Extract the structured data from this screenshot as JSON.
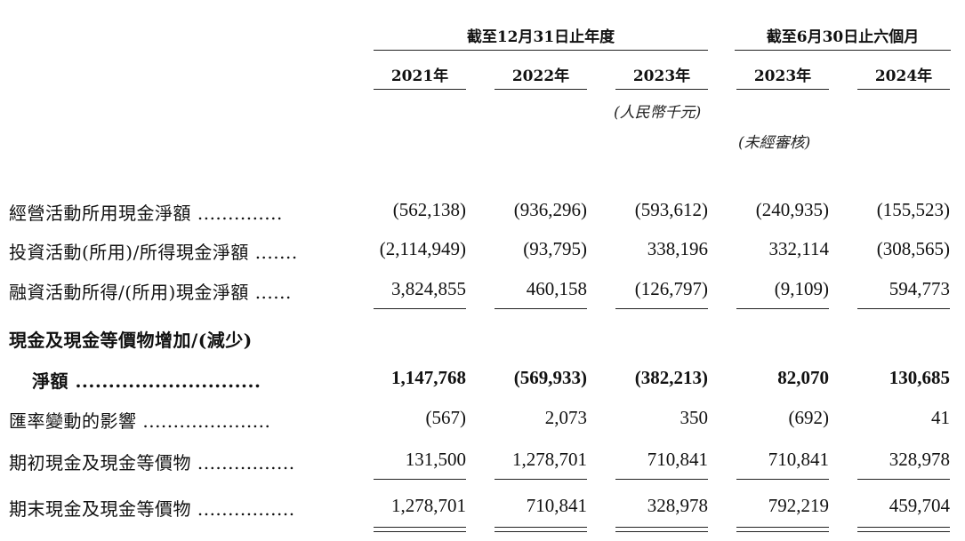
{
  "header": {
    "group_annual": "截至12月31日止年度",
    "group_half": "截至6月30日止六個月",
    "years": [
      "2021年",
      "2022年",
      "2023年",
      "2023年",
      "2024年"
    ],
    "currency_note": "(人民幣千元)",
    "unaudited_note": "(未經審核)"
  },
  "rows": [
    {
      "label": "經營活動所用現金淨額 ..............",
      "values": [
        "(562,138)",
        "(936,296)",
        "(593,612)",
        "(240,935)",
        "(155,523)"
      ]
    },
    {
      "label": "投資活動(所用)/所得現金淨額 .......",
      "values": [
        "(2,114,949)",
        "(93,795)",
        "338,196",
        "332,114",
        "(308,565)"
      ]
    },
    {
      "label": "融資活動所得/(所用)現金淨額 ......",
      "values": [
        "3,824,855",
        "460,158",
        "(126,797)",
        "(9,109)",
        "594,773"
      ]
    },
    {
      "label": "現金及現金等價物增加/(減少)",
      "values": []
    },
    {
      "label": "淨額 ............................",
      "values": [
        "1,147,768",
        "(569,933)",
        "(382,213)",
        "82,070",
        "130,685"
      ]
    },
    {
      "label": "匯率變動的影響 .....................",
      "values": [
        "(567)",
        "2,073",
        "350",
        "(692)",
        "41"
      ]
    },
    {
      "label": "期初現金及現金等價物 ................",
      "values": [
        "131,500",
        "1,278,701",
        "710,841",
        "710,841",
        "328,978"
      ]
    },
    {
      "label": "期末現金及現金等價物 ................",
      "values": [
        "1,278,701",
        "710,841",
        "328,978",
        "792,219",
        "459,704"
      ]
    }
  ]
}
